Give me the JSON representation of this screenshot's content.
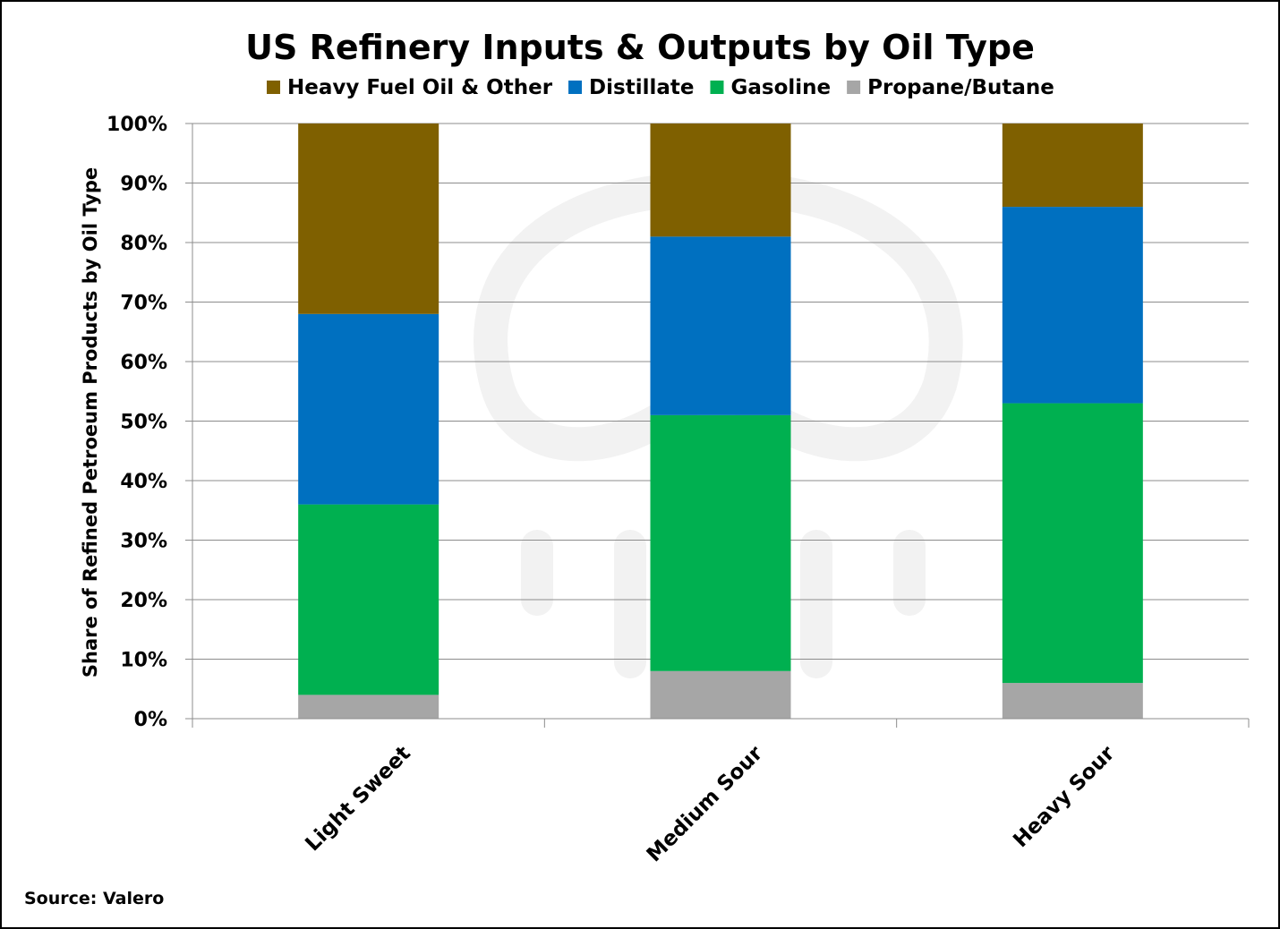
{
  "chart_data": {
    "type": "bar",
    "stacked": true,
    "title": "US Refinery Inputs & Outputs by Oil Type",
    "ylabel": "Share of Refined Petroeum Products by Oil Type",
    "xlabel": "",
    "ylim": [
      0,
      100
    ],
    "yticks": [
      "0%",
      "10%",
      "20%",
      "30%",
      "40%",
      "50%",
      "60%",
      "70%",
      "80%",
      "90%",
      "100%"
    ],
    "grid": true,
    "legend_position": "top",
    "categories": [
      "Light Sweet",
      "Medium Sour",
      "Heavy Sour"
    ],
    "series": [
      {
        "name": "Propane/Butane",
        "color": "#a6a6a6",
        "values": [
          4,
          8,
          6
        ]
      },
      {
        "name": "Gasoline",
        "color": "#00b050",
        "values": [
          32,
          43,
          47
        ]
      },
      {
        "name": "Distillate",
        "color": "#0070c0",
        "values": [
          32,
          30,
          33
        ]
      },
      {
        "name": "Heavy Fuel Oil & Other",
        "color": "#7f6000",
        "values": [
          32,
          19,
          14
        ]
      }
    ],
    "legend_order": [
      "Heavy Fuel Oil & Other",
      "Distillate",
      "Gasoline",
      "Propane/Butane"
    ]
  },
  "source": "Source: Valero"
}
